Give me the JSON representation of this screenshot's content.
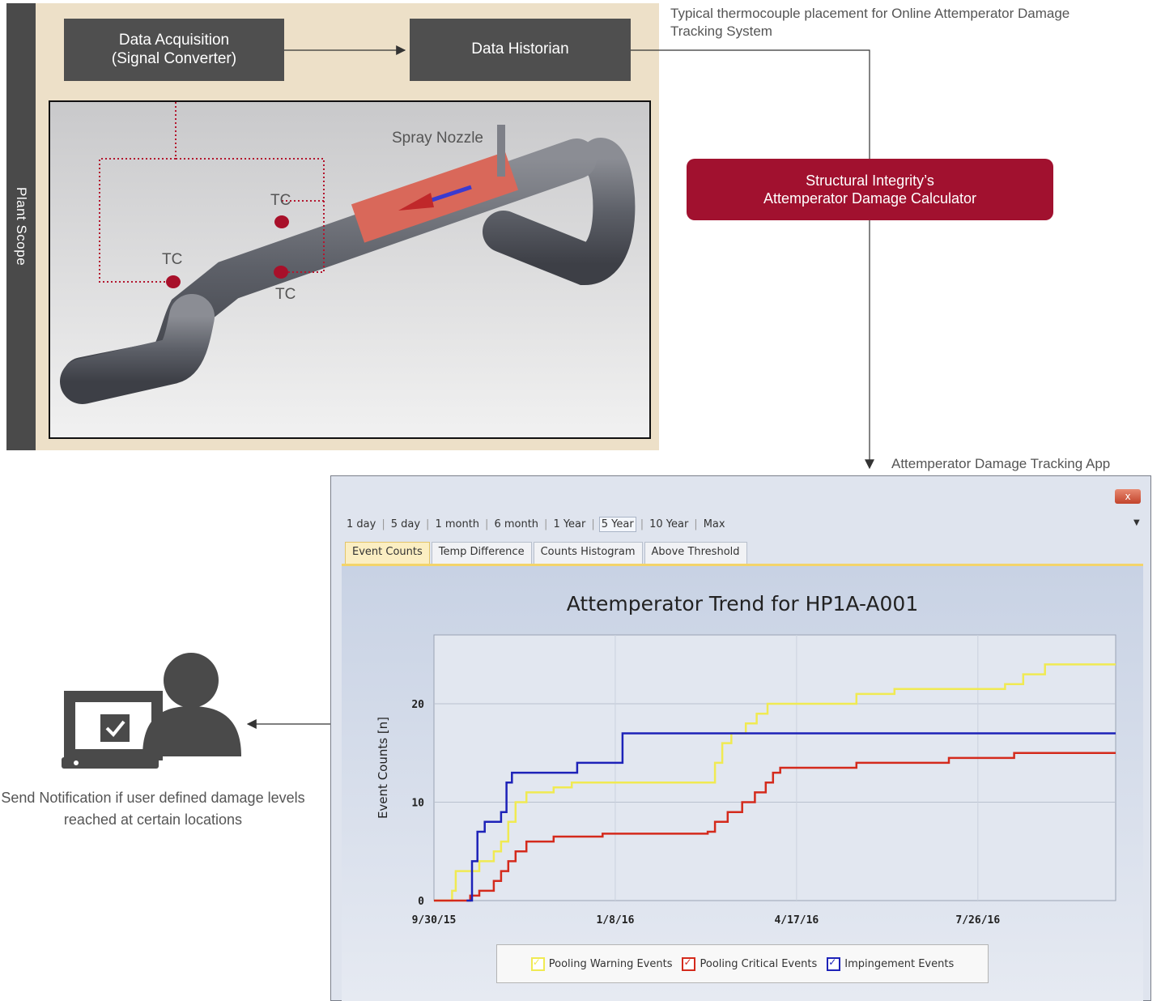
{
  "plant_scope": {
    "label": "Plant Scope",
    "data_acquisition": "Data Acquisition\n(Signal Converter)",
    "data_historian": "Data Historian",
    "spray_nozzle": "Spray Nozzle",
    "tc_labels": [
      "TC",
      "TC",
      "TC"
    ]
  },
  "caption_top": "Typical thermocouple placement for Online Attemperator Damage Tracking System",
  "calculator": {
    "line1": "Structural Integrity’s",
    "line2": "Attemperator Damage Calculator"
  },
  "app_caption": "Attemperator Damage Tracking App",
  "notification": "Send Notification if user defined damage levels reached at certain locations",
  "app": {
    "close_label": "x",
    "ranges": [
      "1 day",
      "5 day",
      "1 month",
      "6 month",
      "1 Year",
      "5 Year",
      "10 Year",
      "Max"
    ],
    "active_range": "5 Year",
    "tabs": [
      "Event Counts",
      "Temp Difference",
      "Counts Histogram",
      "Above Threshold"
    ],
    "active_tab": "Event Counts"
  },
  "colors": {
    "scope_bar": "#4a4a4a",
    "scope_bg": "#ede0c8",
    "calculator": "#a1112f",
    "pooling_warning": "#f0ea52",
    "pooling_critical": "#d42a1c",
    "impingement": "#1d22b8"
  },
  "icons": [
    "laptop-checkbox-icon",
    "person-icon",
    "chevron-down-icon",
    "close-icon"
  ],
  "chart_data": {
    "type": "line",
    "title": "Attemperator Trend for HP1A-A001",
    "xlabel": "",
    "ylabel": "Event Counts [n]",
    "x_ticks": [
      "9/30/15",
      "1/8/16",
      "4/17/16",
      "7/26/16"
    ],
    "y_ticks": [
      0,
      10,
      20
    ],
    "xlim": [
      "2015-09-30",
      "2016-10-10"
    ],
    "ylim": [
      0,
      27
    ],
    "grid": true,
    "legend": "bottom",
    "series": [
      {
        "name": "Pooling Warning Events",
        "color": "#f0ea52",
        "points": [
          [
            "2015-09-30",
            0
          ],
          [
            "2015-10-10",
            1
          ],
          [
            "2015-10-12",
            3
          ],
          [
            "2015-10-20",
            3
          ],
          [
            "2015-10-25",
            4
          ],
          [
            "2015-11-02",
            5
          ],
          [
            "2015-11-06",
            6
          ],
          [
            "2015-11-10",
            8
          ],
          [
            "2015-11-14",
            10
          ],
          [
            "2015-11-20",
            11
          ],
          [
            "2015-12-05",
            11.5
          ],
          [
            "2015-12-15",
            12
          ],
          [
            "2016-03-01",
            12
          ],
          [
            "2016-03-03",
            14
          ],
          [
            "2016-03-07",
            16
          ],
          [
            "2016-03-12",
            17
          ],
          [
            "2016-03-20",
            18
          ],
          [
            "2016-03-26",
            19
          ],
          [
            "2016-04-01",
            20
          ],
          [
            "2016-05-10",
            20
          ],
          [
            "2016-05-20",
            21
          ],
          [
            "2016-06-10",
            21.5
          ],
          [
            "2016-08-10",
            22
          ],
          [
            "2016-08-20",
            23
          ],
          [
            "2016-09-01",
            24
          ],
          [
            "2016-10-10",
            24
          ]
        ]
      },
      {
        "name": "Pooling Critical Events",
        "color": "#d42a1c",
        "points": [
          [
            "2015-09-30",
            0
          ],
          [
            "2015-10-20",
            0.5
          ],
          [
            "2015-10-25",
            1
          ],
          [
            "2015-11-02",
            2
          ],
          [
            "2015-11-06",
            3
          ],
          [
            "2015-11-10",
            4
          ],
          [
            "2015-11-14",
            5
          ],
          [
            "2015-11-20",
            6
          ],
          [
            "2015-12-05",
            6.5
          ],
          [
            "2016-01-01",
            6.8
          ],
          [
            "2016-02-28",
            7
          ],
          [
            "2016-03-03",
            8
          ],
          [
            "2016-03-10",
            9
          ],
          [
            "2016-03-18",
            10
          ],
          [
            "2016-03-25",
            11
          ],
          [
            "2016-03-31",
            12
          ],
          [
            "2016-04-04",
            13
          ],
          [
            "2016-04-08",
            13.5
          ],
          [
            "2016-05-20",
            14
          ],
          [
            "2016-07-10",
            14.5
          ],
          [
            "2016-08-15",
            15
          ],
          [
            "2016-10-10",
            15
          ]
        ]
      },
      {
        "name": "Impingement Events",
        "color": "#1d22b8",
        "points": [
          [
            "2015-10-18",
            0
          ],
          [
            "2015-10-21",
            4
          ],
          [
            "2015-10-24",
            7
          ],
          [
            "2015-10-28",
            8
          ],
          [
            "2015-11-04",
            8
          ],
          [
            "2015-11-06",
            9
          ],
          [
            "2015-11-09",
            12
          ],
          [
            "2015-11-12",
            13
          ],
          [
            "2015-12-15",
            13
          ],
          [
            "2015-12-18",
            14
          ],
          [
            "2016-01-08",
            14
          ],
          [
            "2016-01-12",
            17
          ],
          [
            "2016-10-10",
            17
          ]
        ]
      }
    ]
  }
}
